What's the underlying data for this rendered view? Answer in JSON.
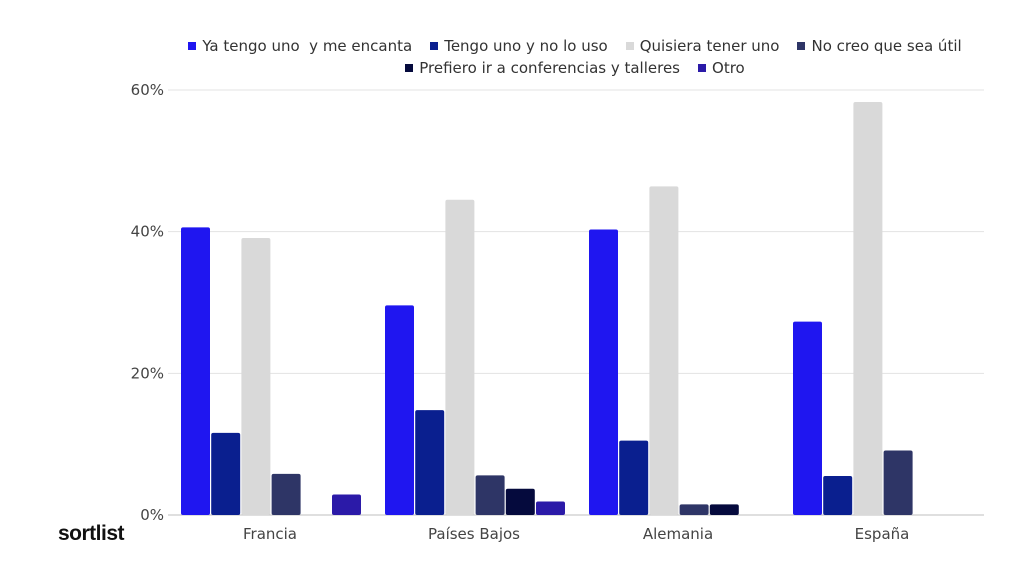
{
  "logo": "sortlist",
  "chart_data": {
    "type": "bar",
    "categories": [
      "Francia",
      "Países Bajos",
      "Alemania",
      "España"
    ],
    "series": [
      {
        "name": "Ya tengo uno  y me encanta",
        "color": "#1f16f0",
        "values": [
          40.6,
          29.6,
          40.3,
          27.3
        ]
      },
      {
        "name": "Tengo uno y no lo uso",
        "color": "#0a1f8f",
        "values": [
          11.6,
          14.8,
          10.5,
          5.5
        ]
      },
      {
        "name": "Quisiera tener uno",
        "color": "#d9d9d9",
        "values": [
          39.1,
          44.5,
          46.4,
          58.3
        ]
      },
      {
        "name": "No creo que sea útil",
        "color": "#2e3566",
        "values": [
          5.8,
          5.6,
          1.5,
          9.1
        ]
      },
      {
        "name": "Prefiero ir a conferencias y talleres",
        "color": "#050a3d",
        "values": [
          0,
          3.7,
          1.5,
          0
        ]
      },
      {
        "name": "Otro",
        "color": "#2b1aa8",
        "values": [
          2.9,
          1.9,
          0,
          0
        ]
      }
    ],
    "yticks": [
      "0%",
      "20%",
      "40%",
      "60%"
    ],
    "ylim": [
      0,
      60
    ],
    "grid": true,
    "legend_position": "top"
  }
}
